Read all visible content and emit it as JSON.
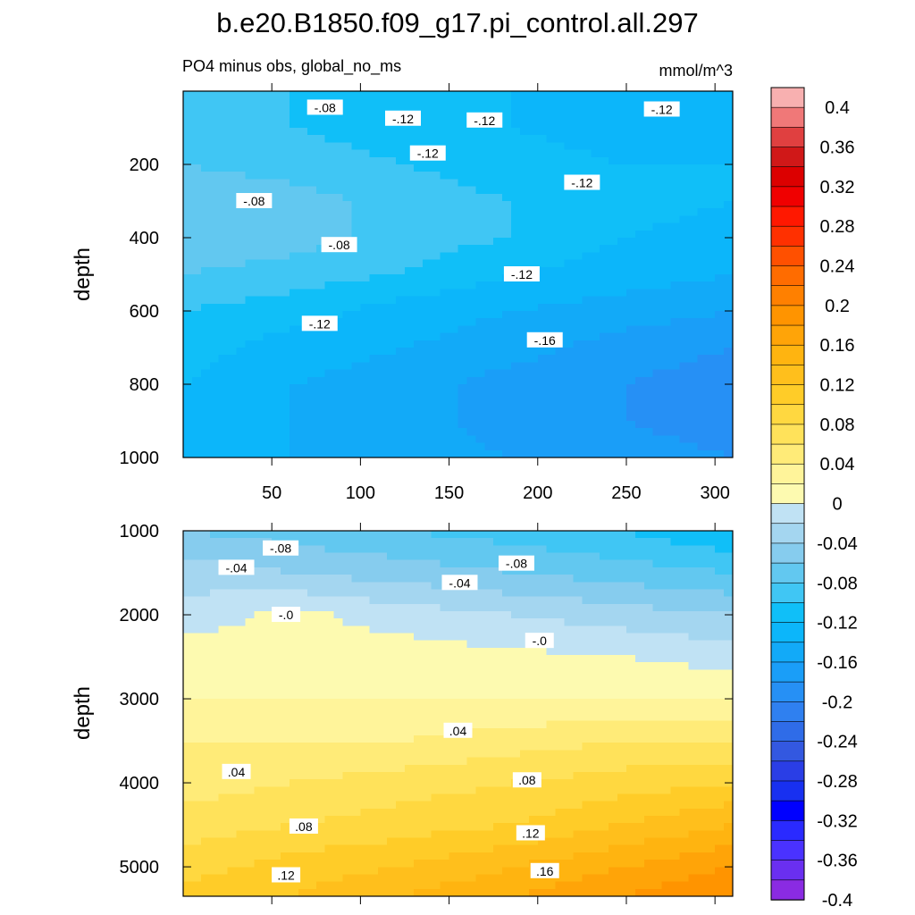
{
  "title": "b.e20.B1850.f09_g17.pi_control.all.297",
  "colors": {
    "levels": [
      -0.4,
      -0.38,
      -0.36,
      -0.34,
      -0.32,
      -0.3,
      -0.28,
      -0.26,
      -0.24,
      -0.22,
      -0.2,
      -0.18,
      -0.16,
      -0.14,
      -0.12,
      -0.1,
      -0.08,
      -0.06,
      -0.04,
      -0.02,
      0,
      0.02,
      0.04,
      0.06,
      0.08,
      0.1,
      0.12,
      0.14,
      0.16,
      0.18,
      0.2,
      0.22,
      0.24,
      0.26,
      0.28,
      0.3,
      0.32,
      0.34,
      0.36,
      0.38,
      0.4
    ],
    "fills": [
      "#8a2be2",
      "#6a2ff0",
      "#4a32ff",
      "#2a2aff",
      "#0000ff",
      "#1830f0",
      "#2a3ee6",
      "#3358e0",
      "#2f6ce8",
      "#2f80f0",
      "#2690f5",
      "#1a9ef8",
      "#12aaf8",
      "#0cb6fa",
      "#10bff8",
      "#40c6f4",
      "#62c8f0",
      "#86ccee",
      "#a4d6f0",
      "#c0e2f4",
      "#fdfab0",
      "#fff49a",
      "#ffeb78",
      "#ffe25a",
      "#ffd840",
      "#ffcc28",
      "#ffbf1c",
      "#ffb410",
      "#ffa408",
      "#ff9400",
      "#ff8000",
      "#ff6c00",
      "#ff5000",
      "#ff3000",
      "#ff1800",
      "#f00000",
      "#dc0000",
      "#d01818",
      "#e04040",
      "#f07878",
      "#f8b0b0"
    ]
  },
  "colorbar": {
    "tick_labels": [
      "-0.4",
      "-0.36",
      "-0.32",
      "-0.28",
      "-0.24",
      "-0.2",
      "-0.16",
      "-0.12",
      "-0.08",
      "-0.04",
      "0",
      "0.04",
      "0.08",
      "0.12",
      "0.16",
      "0.2",
      "0.24",
      "0.28",
      "0.32",
      "0.36",
      "0.4"
    ]
  },
  "chart_data": [
    {
      "type": "heatmap",
      "subtitle": "PO4 minus obs, global_no_ms",
      "units": "mmol/m^3",
      "ylabel": "depth",
      "xlabel": "",
      "xlim": [
        0,
        310
      ],
      "ylim": [
        1000,
        0
      ],
      "xticks": [
        50,
        100,
        150,
        200,
        250,
        300
      ],
      "yticks": [
        200,
        400,
        600,
        800,
        1000
      ],
      "x": [
        0,
        62,
        124,
        186,
        248,
        310
      ],
      "y": [
        0,
        100,
        200,
        300,
        400,
        500,
        600,
        700,
        800,
        900,
        1000
      ],
      "z": [
        [
          -0.09,
          -0.1,
          -0.11,
          -0.12,
          -0.12,
          -0.12
        ],
        [
          -0.1,
          -0.1,
          -0.11,
          -0.12,
          -0.13,
          -0.13
        ],
        [
          -0.08,
          -0.09,
          -0.1,
          -0.11,
          -0.12,
          -0.12
        ],
        [
          -0.06,
          -0.07,
          -0.09,
          -0.1,
          -0.11,
          -0.12
        ],
        [
          -0.06,
          -0.07,
          -0.09,
          -0.1,
          -0.12,
          -0.13
        ],
        [
          -0.08,
          -0.09,
          -0.1,
          -0.12,
          -0.13,
          -0.14
        ],
        [
          -0.1,
          -0.11,
          -0.13,
          -0.14,
          -0.15,
          -0.16
        ],
        [
          -0.11,
          -0.13,
          -0.14,
          -0.15,
          -0.17,
          -0.18
        ],
        [
          -0.12,
          -0.14,
          -0.15,
          -0.17,
          -0.18,
          -0.19
        ],
        [
          -0.12,
          -0.14,
          -0.15,
          -0.17,
          -0.18,
          -0.19
        ],
        [
          -0.12,
          -0.14,
          -0.15,
          -0.16,
          -0.17,
          -0.18
        ]
      ],
      "contour_labels": [
        {
          "text": "-.08",
          "x": 80,
          "y": 45
        },
        {
          "text": "-.12",
          "x": 124,
          "y": 75
        },
        {
          "text": "-.12",
          "x": 170,
          "y": 80
        },
        {
          "text": "-.12",
          "x": 270,
          "y": 50
        },
        {
          "text": "-.08",
          "x": 40,
          "y": 300
        },
        {
          "text": "-.12",
          "x": 138,
          "y": 170
        },
        {
          "text": "-.12",
          "x": 225,
          "y": 250
        },
        {
          "text": "-.08",
          "x": 88,
          "y": 420
        },
        {
          "text": "-.12",
          "x": 191,
          "y": 500
        },
        {
          "text": "-.12",
          "x": 77,
          "y": 635
        },
        {
          "text": "-.16",
          "x": 204,
          "y": 680
        }
      ]
    },
    {
      "type": "heatmap",
      "ylabel": "depth",
      "xlabel": "",
      "xlim": [
        0,
        310
      ],
      "ylim": [
        5350,
        1000
      ],
      "xticks": [],
      "yticks": [
        1000,
        2000,
        3000,
        4000,
        5000
      ],
      "x": [
        0,
        62,
        124,
        186,
        248,
        310
      ],
      "y": [
        1000,
        1500,
        2000,
        2500,
        3000,
        3500,
        4000,
        4500,
        5000,
        5350
      ],
      "z": [
        [
          -0.06,
          -0.07,
          -0.08,
          -0.09,
          -0.1,
          -0.12
        ],
        [
          -0.03,
          -0.04,
          -0.05,
          -0.06,
          -0.07,
          -0.08
        ],
        [
          -0.01,
          0.005,
          -0.01,
          -0.02,
          -0.03,
          -0.04
        ],
        [
          0.01,
          0.01,
          0.01,
          0.005,
          0.0,
          -0.01
        ],
        [
          0.02,
          0.02,
          0.02,
          0.02,
          0.02,
          0.02
        ],
        [
          0.04,
          0.04,
          0.04,
          0.05,
          0.06,
          0.06
        ],
        [
          0.05,
          0.06,
          0.07,
          0.08,
          0.09,
          0.1
        ],
        [
          0.07,
          0.08,
          0.09,
          0.1,
          0.12,
          0.14
        ],
        [
          0.09,
          0.11,
          0.12,
          0.14,
          0.16,
          0.18
        ],
        [
          0.11,
          0.12,
          0.14,
          0.16,
          0.18,
          0.2
        ]
      ],
      "contour_labels": [
        {
          "text": "-.08",
          "x": 55,
          "y": 1210
        },
        {
          "text": "-.04",
          "x": 30,
          "y": 1440
        },
        {
          "text": "-.08",
          "x": 188,
          "y": 1390
        },
        {
          "text": "-.04",
          "x": 156,
          "y": 1620
        },
        {
          "text": "-.0",
          "x": 58,
          "y": 2000
        },
        {
          "text": "-.0",
          "x": 201,
          "y": 2310
        },
        {
          "text": ".04",
          "x": 155,
          "y": 3380
        },
        {
          "text": ".04",
          "x": 30,
          "y": 3870
        },
        {
          "text": ".08",
          "x": 194,
          "y": 3970
        },
        {
          "text": ".08",
          "x": 68,
          "y": 4520
        },
        {
          "text": ".12",
          "x": 196,
          "y": 4600
        },
        {
          "text": ".12",
          "x": 58,
          "y": 5100
        },
        {
          "text": ".16",
          "x": 204,
          "y": 5050
        }
      ]
    }
  ]
}
